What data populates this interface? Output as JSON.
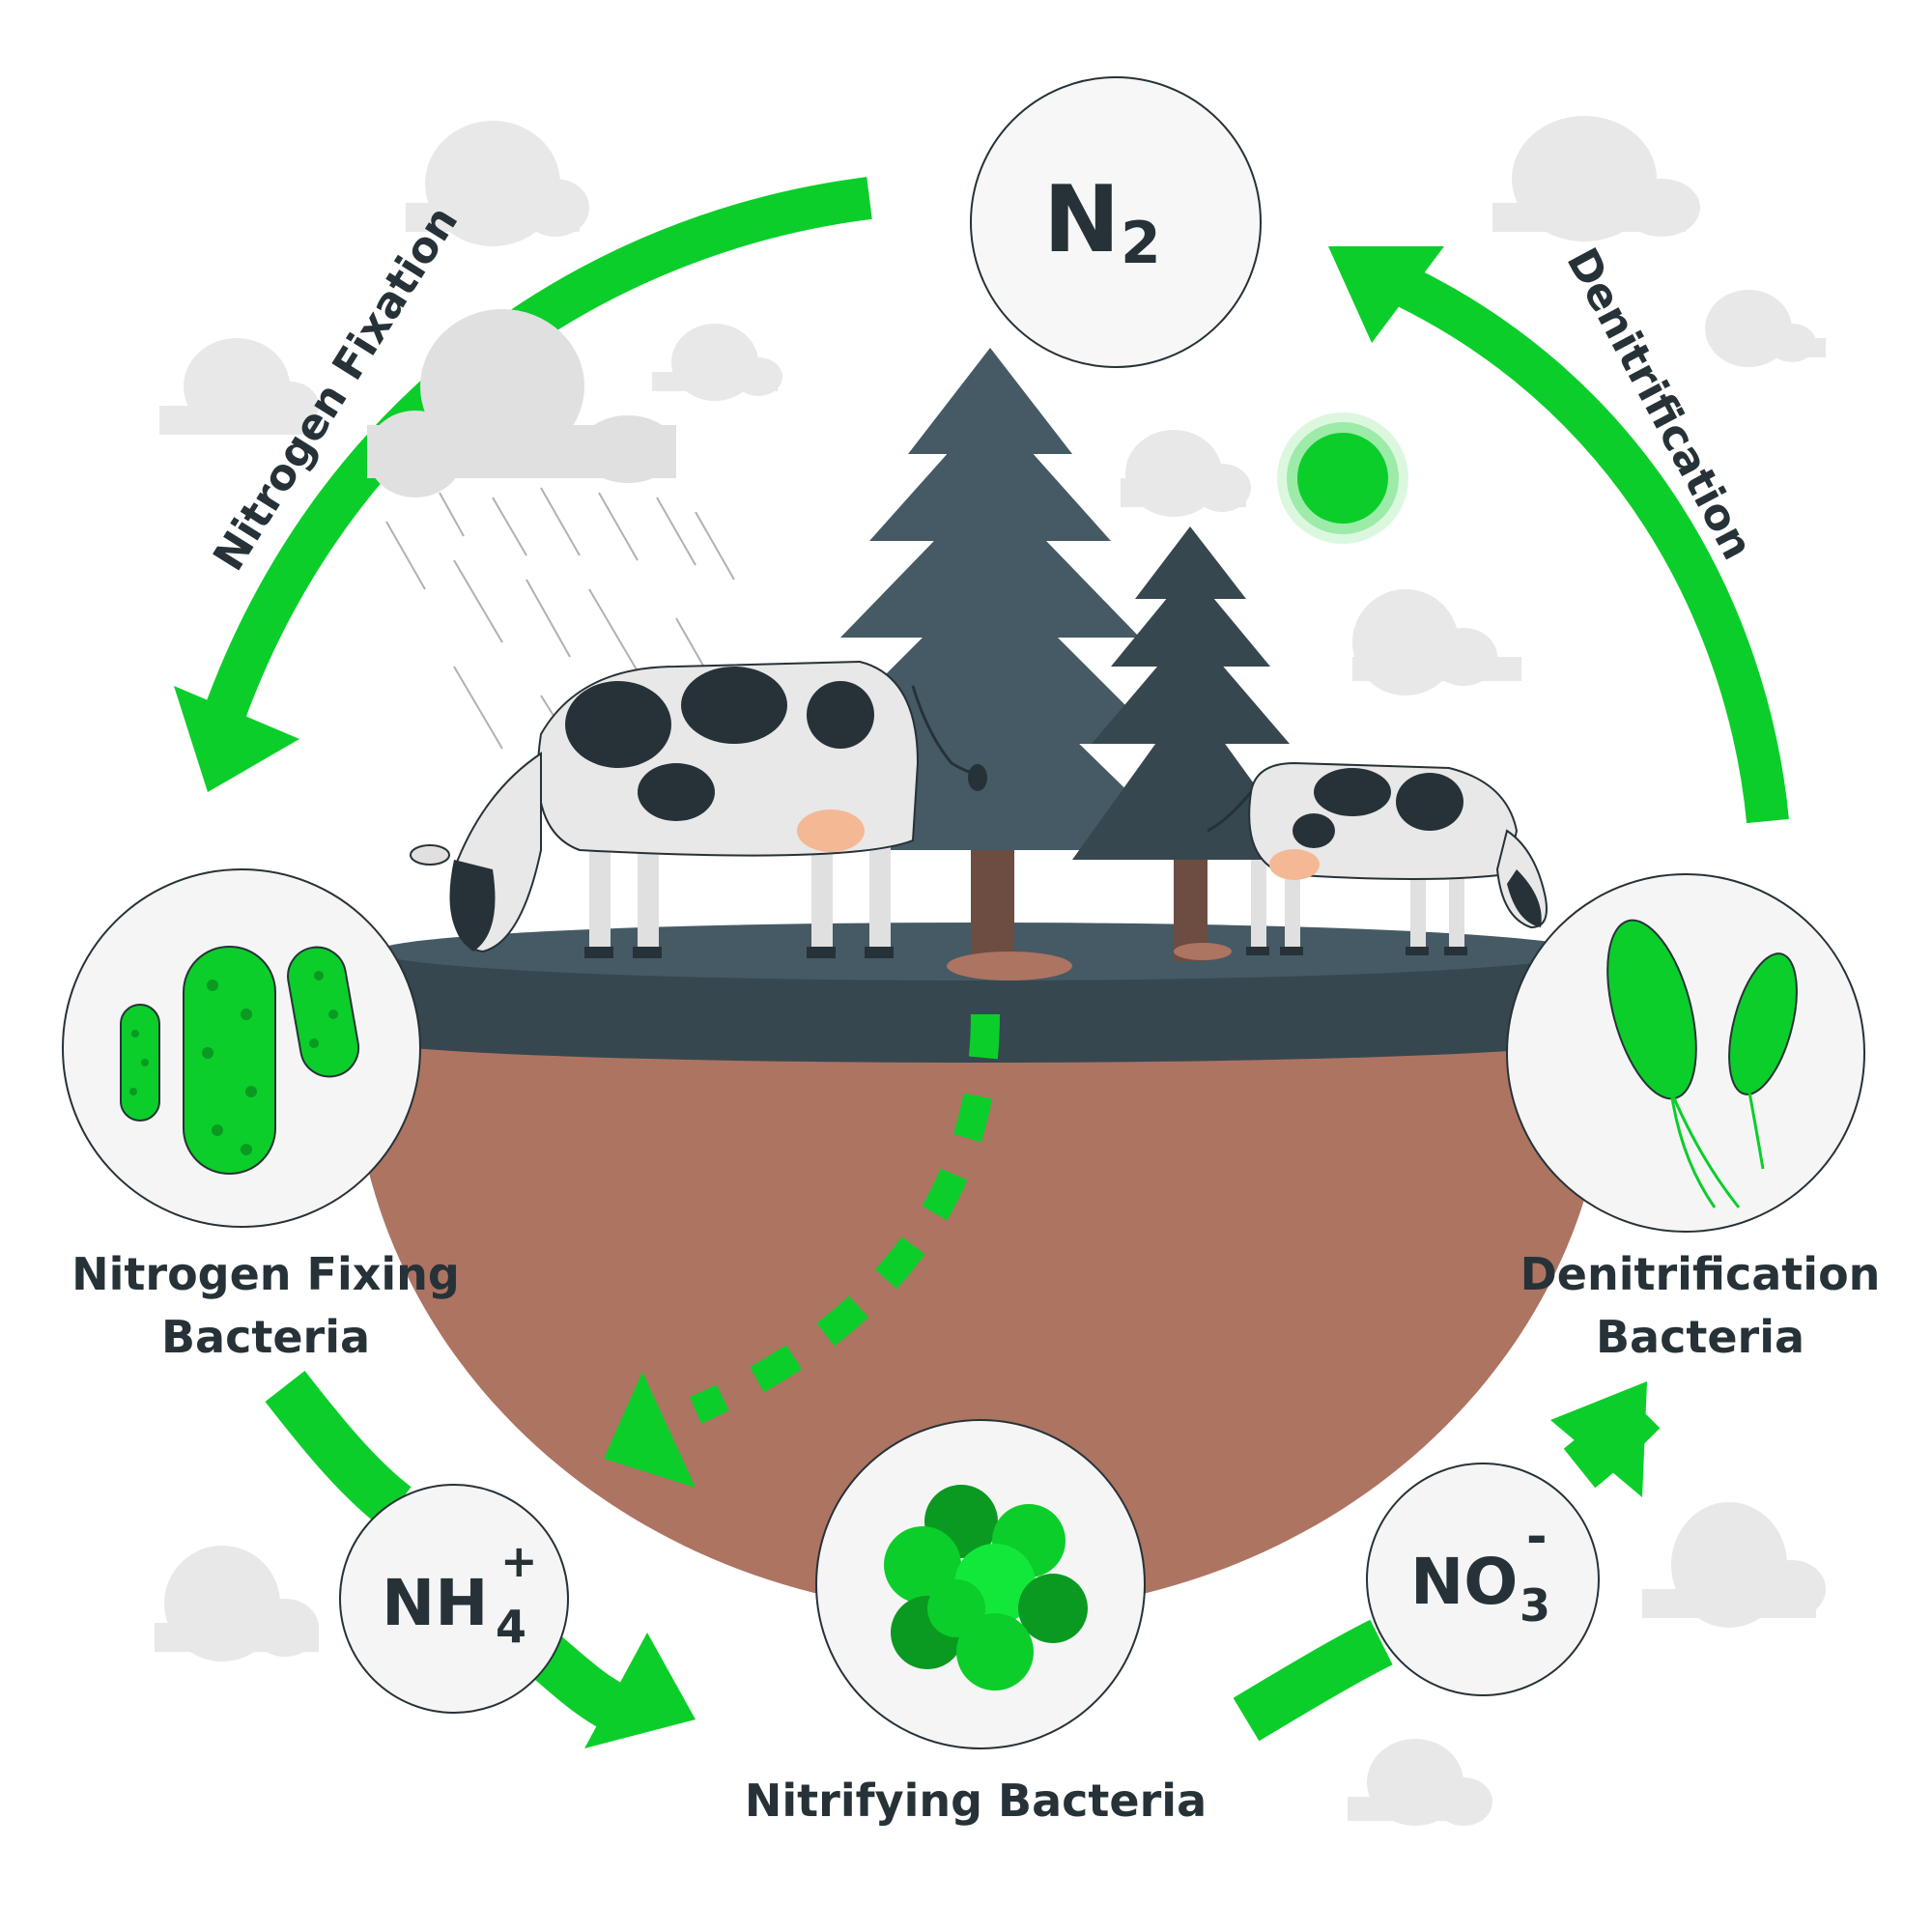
{
  "nodes": {
    "n2": {
      "main": "N",
      "sub": "2"
    },
    "nh4": {
      "main": "NH",
      "sup": "+",
      "sub": "4"
    },
    "no3": {
      "main": "NO",
      "sup": "-",
      "sub": "3"
    }
  },
  "labels": {
    "nitrogen_fixation": "Nitrogen Fixation",
    "denitrification": "Denitrification",
    "fixing_bacteria_line1": "Nitrogen Fixing",
    "fixing_bacteria_line2": "Bacteria",
    "denit_bacteria_line1": "Denitrification",
    "denit_bacteria_line2": "Bacteria",
    "nitrifying_bacteria": "Nitrifying  Bacteria"
  },
  "colors": {
    "accent_green": "#0bce2a",
    "dark_text": "#263238",
    "soil": "#ad7462",
    "ground": "#455a64",
    "ground_dark": "#37474f",
    "tree": "#455a64",
    "trunk": "#6d4c41",
    "cloud": "#e0e0e0",
    "circle_fill": "#f5f5f5"
  },
  "icons": [
    "rain-cloud-icon",
    "sun-icon",
    "tree-icon",
    "cow-icon",
    "bacteria-icon"
  ]
}
